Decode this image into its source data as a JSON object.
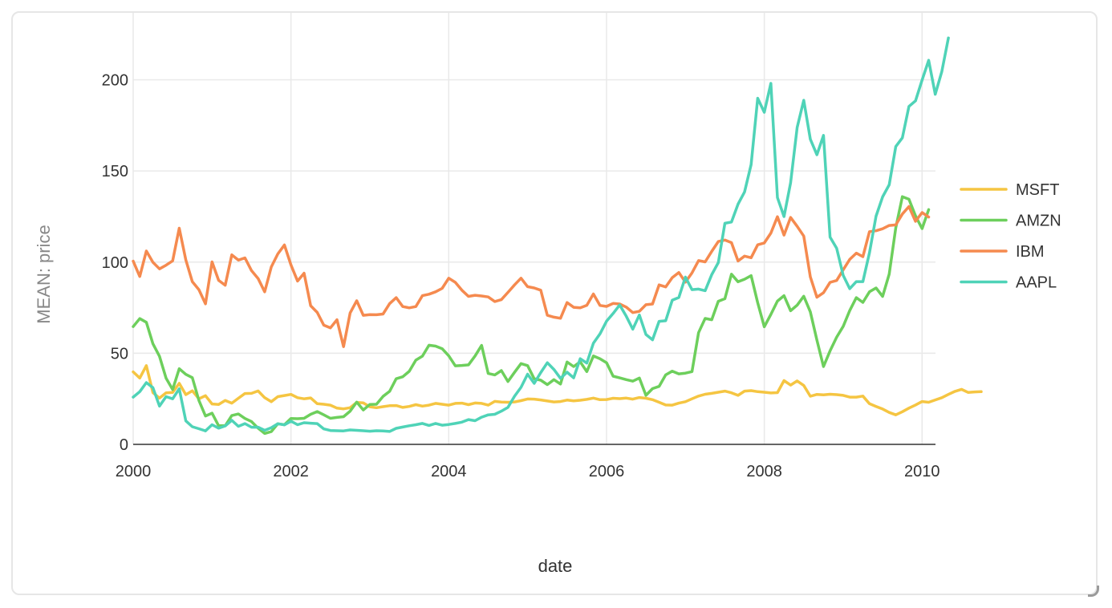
{
  "chart_data": {
    "type": "line",
    "xlabel": "date",
    "ylabel": "MEAN: price",
    "xlim": [
      2000,
      2010.17
    ],
    "ylim": [
      0,
      224
    ],
    "x_ticks": [
      {
        "value": 2000,
        "label": "2000"
      },
      {
        "value": 2002,
        "label": "2002"
      },
      {
        "value": 2004,
        "label": "2004"
      },
      {
        "value": 2006,
        "label": "2006"
      },
      {
        "value": 2008,
        "label": "2008"
      },
      {
        "value": 2010,
        "label": "2010"
      }
    ],
    "y_ticks": [
      {
        "value": 0,
        "label": "0"
      },
      {
        "value": 50,
        "label": "50"
      },
      {
        "value": 100,
        "label": "100"
      },
      {
        "value": 150,
        "label": "150"
      },
      {
        "value": 200,
        "label": "200"
      }
    ],
    "grid": true,
    "legend_position": "right",
    "x_start": "2000-01",
    "x_step": "1 month",
    "series": [
      {
        "name": "MSFT",
        "color": "#f5c542",
        "values": [
          39.8,
          36.4,
          43.2,
          28.4,
          25.4,
          28.3,
          28.5,
          33.5,
          27.3,
          29.4,
          25.0,
          26.7,
          22.2,
          21.9,
          24.1,
          22.6,
          25.3,
          27.9,
          28.0,
          29.3,
          25.6,
          23.4,
          26.2,
          26.8,
          27.4,
          25.6,
          25.0,
          25.5,
          22.3,
          22.0,
          21.5,
          19.9,
          19.5,
          20.1,
          23.0,
          22.8,
          20.6,
          20.1,
          20.7,
          21.2,
          21.3,
          20.3,
          20.8,
          21.8,
          21.0,
          21.5,
          22.5,
          22.0,
          21.5,
          22.5,
          22.6,
          21.8,
          22.7,
          22.5,
          21.5,
          23.6,
          23.2,
          23.1,
          23.3,
          24.0,
          24.9,
          24.8,
          24.4,
          23.8,
          23.3,
          23.5,
          24.3,
          23.9,
          24.2,
          24.7,
          25.4,
          24.5,
          24.6,
          25.3,
          25.1,
          25.4,
          24.8,
          25.7,
          25.3,
          24.5,
          23.1,
          21.6,
          21.5,
          22.6,
          23.4,
          25.0,
          26.5,
          27.5,
          28.0,
          28.6,
          29.2,
          28.3,
          26.9,
          29.2,
          29.5,
          28.9,
          28.6,
          28.2,
          28.4,
          35.0,
          32.5,
          34.8,
          32.3,
          26.4,
          27.4,
          27.2,
          27.5,
          27.3,
          26.9,
          25.9,
          25.9,
          26.5,
          22.3,
          20.8,
          19.4,
          17.5,
          16.2,
          17.9,
          19.9,
          21.6,
          23.5,
          23.1,
          24.4,
          25.6,
          27.4,
          29.1,
          30.2,
          28.5,
          28.8,
          28.9
        ]
      },
      {
        "name": "AMZN",
        "color": "#6dcf5c",
        "values": [
          64.6,
          69.0,
          67.0,
          55.2,
          48.3,
          36.3,
          30.1,
          41.5,
          38.4,
          36.6,
          24.1,
          15.6,
          17.1,
          10.2,
          10.2,
          15.8,
          16.7,
          14.2,
          12.5,
          8.9,
          5.97,
          6.98,
          11.3,
          10.8,
          14.2,
          14.1,
          14.3,
          16.5,
          18.0,
          16.2,
          14.3,
          14.8,
          15.2,
          18.2,
          23.2,
          18.9,
          21.9,
          22.0,
          26.3,
          29.1,
          36.0,
          37.1,
          40.1,
          46.2,
          48.4,
          54.4,
          53.9,
          52.5,
          48.6,
          43.1,
          43.3,
          43.6,
          48.5,
          54.3,
          38.9,
          38.1,
          40.5,
          34.5,
          39.5,
          44.3,
          43.2,
          36.0,
          35.2,
          32.8,
          35.5,
          33.1,
          45.2,
          42.7,
          45.3,
          39.9,
          48.5,
          47.0,
          44.8,
          37.4,
          36.5,
          35.5,
          34.7,
          36.4,
          26.9,
          30.6,
          31.8,
          38.1,
          40.2,
          38.7,
          39.1,
          39.9,
          61.3,
          69.1,
          68.4,
          78.5,
          79.9,
          93.4,
          89.2,
          90.6,
          92.6,
          77.7,
          64.5,
          71.3,
          78.6,
          81.6,
          73.3,
          76.4,
          81.3,
          72.7,
          57.2,
          42.7,
          51.3,
          58.8,
          64.8,
          73.4,
          80.5,
          77.9,
          83.7,
          85.8,
          81.2,
          93.4,
          118.8,
          135.9,
          134.5,
          125.4,
          118.4,
          128.8
        ]
      },
      {
        "name": "IBM",
        "color": "#f58a4f",
        "values": [
          100.5,
          92.1,
          106.1,
          99.9,
          96.3,
          98.3,
          100.7,
          118.6,
          101.2,
          89.3,
          84.9,
          77.1,
          100.1,
          90.0,
          87.3,
          104.0,
          101.1,
          102.3,
          95.3,
          91.0,
          83.7,
          97.3,
          104.5,
          109.4,
          98.4,
          89.6,
          93.9,
          76.1,
          72.4,
          65.4,
          63.9,
          68.4,
          53.6,
          72.1,
          78.8,
          70.8,
          71.2,
          71.1,
          71.5,
          77.2,
          80.5,
          75.6,
          74.9,
          75.6,
          81.6,
          82.4,
          83.7,
          85.6,
          91.2,
          88.9,
          84.6,
          81.2,
          81.8,
          81.4,
          80.9,
          78.4,
          79.4,
          83.4,
          87.5,
          91.2,
          86.5,
          85.8,
          84.6,
          70.8,
          69.8,
          69.2,
          77.8,
          75.2,
          74.9,
          76.3,
          82.5,
          76.2,
          75.7,
          77.3,
          77.0,
          75.3,
          72.3,
          73.0,
          76.6,
          77.0,
          87.5,
          86.4,
          91.5,
          94.3,
          89.0,
          94.1,
          100.8,
          100.1,
          105.9,
          111.3,
          112.1,
          110.7,
          100.6,
          103.3,
          102.4,
          109.5,
          110.5,
          115.9,
          124.9,
          114.8,
          124.5,
          119.6,
          114.3,
          91.9,
          80.7,
          83.2,
          88.9,
          89.9,
          95.8,
          101.5,
          104.9,
          103.0,
          116.7,
          117.2,
          118.3,
          120.1,
          120.4,
          126.4,
          130.5,
          122.4,
          127.2,
          124.7
        ]
      },
      {
        "name": "AAPL",
        "color": "#4fd3b7",
        "values": [
          25.9,
          28.9,
          33.9,
          31.1,
          21.0,
          26.2,
          25.0,
          30.5,
          12.9,
          9.7,
          8.6,
          7.4,
          10.8,
          8.9,
          10.1,
          13.2,
          9.9,
          11.4,
          9.4,
          9.4,
          7.7,
          9.1,
          11.3,
          10.7,
          12.7,
          10.8,
          11.9,
          11.6,
          11.4,
          8.5,
          7.6,
          7.5,
          7.4,
          7.9,
          7.7,
          7.5,
          7.2,
          7.5,
          7.4,
          7.1,
          8.8,
          9.5,
          10.2,
          10.8,
          11.5,
          10.4,
          11.5,
          10.5,
          10.9,
          11.5,
          12.2,
          13.6,
          13.0,
          14.9,
          16.2,
          16.5,
          18.2,
          20.3,
          26.4,
          31.3,
          38.5,
          33.5,
          39.4,
          44.8,
          41.1,
          36.2,
          39.6,
          36.5,
          47.0,
          44.6,
          55.5,
          60.6,
          67.6,
          71.8,
          76.5,
          70.3,
          63.2,
          71.0,
          60.3,
          57.4,
          67.5,
          67.8,
          79.1,
          80.6,
          91.8,
          84.9,
          85.2,
          84.3,
          93.1,
          99.7,
          121.3,
          122.0,
          131.8,
          138.5,
          153.5,
          189.9,
          182.2,
          198.1,
          135.4,
          125.0,
          143.5,
          173.9,
          188.8,
          167.4,
          158.9,
          169.5,
          113.7,
          107.6,
          92.7,
          85.4,
          89.3,
          89.3,
          105.1,
          125.2,
          135.8,
          142.4,
          163.4,
          168.2,
          185.4,
          188.5,
          199.9,
          210.7,
          192.1,
          204.6,
          223.0
        ]
      }
    ]
  }
}
